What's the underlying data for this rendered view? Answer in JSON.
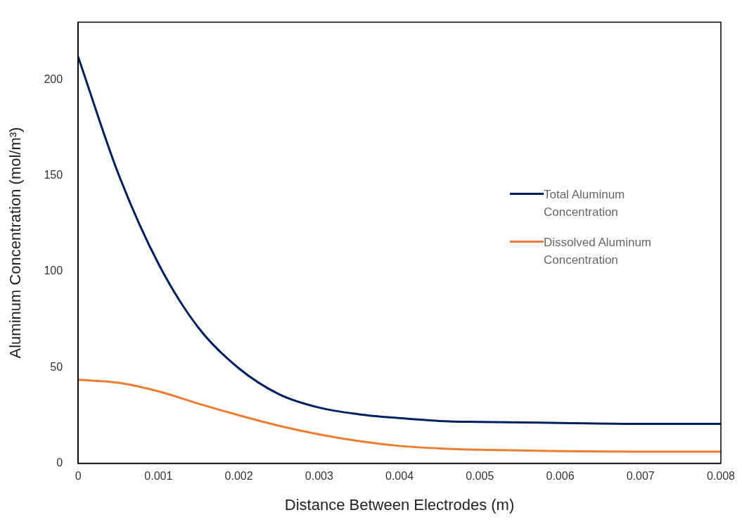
{
  "chart_data": {
    "type": "line",
    "xlabel": "Distance Between Electrodes (m)",
    "ylabel": "Aluminum Concentration (mol/m³)",
    "x": [
      0,
      0.0005,
      0.001,
      0.0015,
      0.002,
      0.0025,
      0.003,
      0.0035,
      0.004,
      0.0045,
      0.005,
      0.006,
      0.007,
      0.008
    ],
    "series": [
      {
        "name": "Total Aluminum Concentration",
        "color": "#002060",
        "values": [
          212,
          151,
          104,
          70.5,
          49.5,
          36,
          29,
          25.5,
          23.5,
          22,
          21.5,
          21,
          20.5,
          20.5
        ]
      },
      {
        "name": "Dissolved Aluminum Concentration",
        "color": "#ed7d31",
        "values": [
          43.5,
          42,
          37.5,
          31,
          25,
          19.5,
          15,
          11.5,
          9,
          7.7,
          7,
          6.3,
          6,
          6
        ]
      }
    ],
    "xlim": [
      0,
      0.008
    ],
    "xticks": [
      0,
      0.001,
      0.002,
      0.003,
      0.004,
      0.005,
      0.006,
      0.007,
      0.008
    ],
    "ylim": [
      0,
      230
    ],
    "yticks": [
      0,
      50,
      100,
      150,
      200
    ],
    "grid": false,
    "legend": "right",
    "marker": "none",
    "line_style": "solid"
  }
}
